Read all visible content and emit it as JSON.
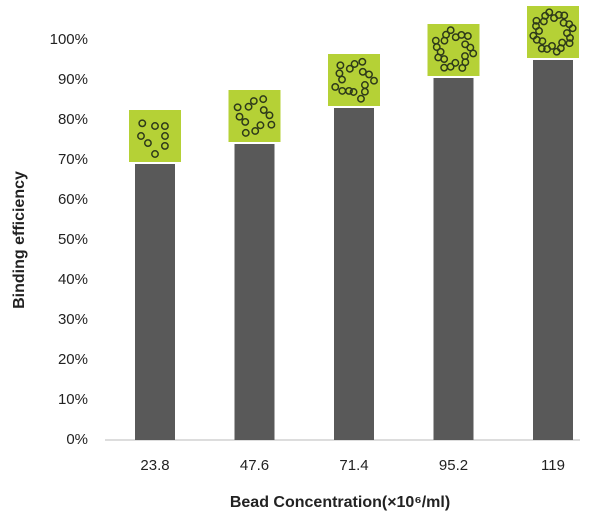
{
  "chart_data": {
    "type": "bar",
    "y_label": "Binding efficiency",
    "x_label": "Bead Concentration(×10⁶/ml)",
    "categories": [
      "23.8",
      "47.6",
      "71.4",
      "95.2",
      "119"
    ],
    "values": [
      69,
      74,
      83,
      90.5,
      95
    ],
    "color": "#595959",
    "ylim": [
      0,
      100
    ],
    "yticks": [
      {
        "value": 0,
        "label": "0%"
      },
      {
        "value": 10,
        "label": "10%"
      },
      {
        "value": 20,
        "label": "20%"
      },
      {
        "value": 30,
        "label": "30%"
      },
      {
        "value": 40,
        "label": "40%"
      },
      {
        "value": 50,
        "label": "50%"
      },
      {
        "value": 60,
        "label": "60%"
      },
      {
        "value": 70,
        "label": "70%"
      },
      {
        "value": 80,
        "label": "80%"
      },
      {
        "value": 90,
        "label": "90%"
      },
      {
        "value": 100,
        "label": "100%"
      }
    ]
  }
}
